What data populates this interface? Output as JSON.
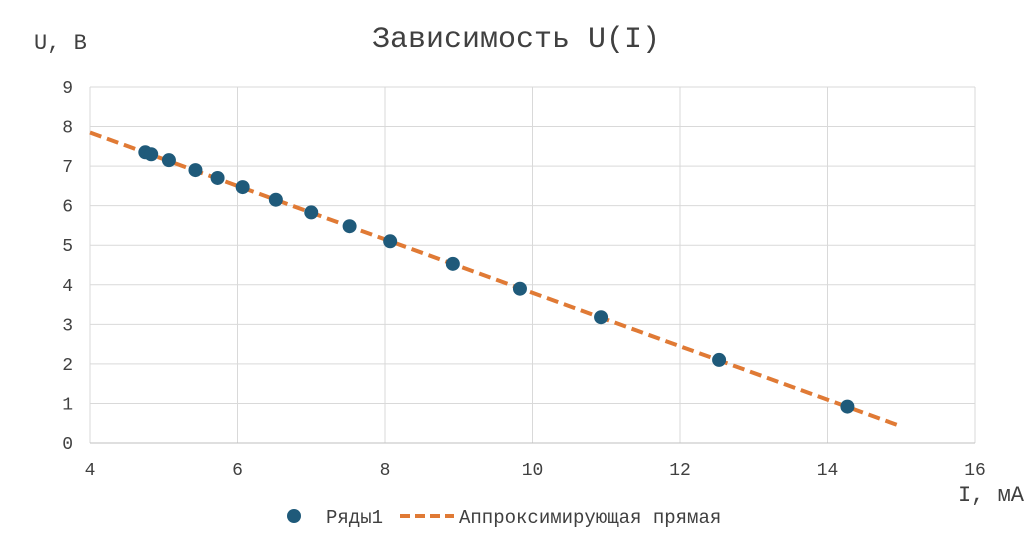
{
  "chart_data": {
    "type": "scatter",
    "title": "Зависимость U(I)",
    "xlabel": "I, мА",
    "ylabel": "U, В",
    "xlim": [
      4,
      16
    ],
    "ylim": [
      0,
      9
    ],
    "x_ticks": [
      "4",
      "6",
      "8",
      "10",
      "12",
      "14",
      "16"
    ],
    "y_ticks": [
      "0",
      "1",
      "2",
      "3",
      "4",
      "5",
      "6",
      "7",
      "8",
      "9"
    ],
    "grid": true,
    "legend_position": "bottom",
    "series": [
      {
        "name": "Ряды1",
        "type": "scatter",
        "color": "#1f5a7a",
        "x": [
          4.75,
          4.83,
          5.07,
          5.43,
          5.73,
          6.07,
          6.52,
          7.0,
          7.52,
          8.07,
          8.92,
          9.83,
          10.93,
          12.53,
          14.27
        ],
        "y": [
          7.35,
          7.3,
          7.15,
          6.9,
          6.7,
          6.47,
          6.15,
          5.83,
          5.48,
          5.1,
          4.53,
          3.9,
          3.18,
          2.1,
          0.92
        ]
      },
      {
        "name": "Аппроксимирующая прямая",
        "type": "line",
        "style": "dashed",
        "color": "#e07a35",
        "x": [
          4,
          15
        ],
        "y": [
          7.85,
          0.42
        ]
      }
    ]
  }
}
